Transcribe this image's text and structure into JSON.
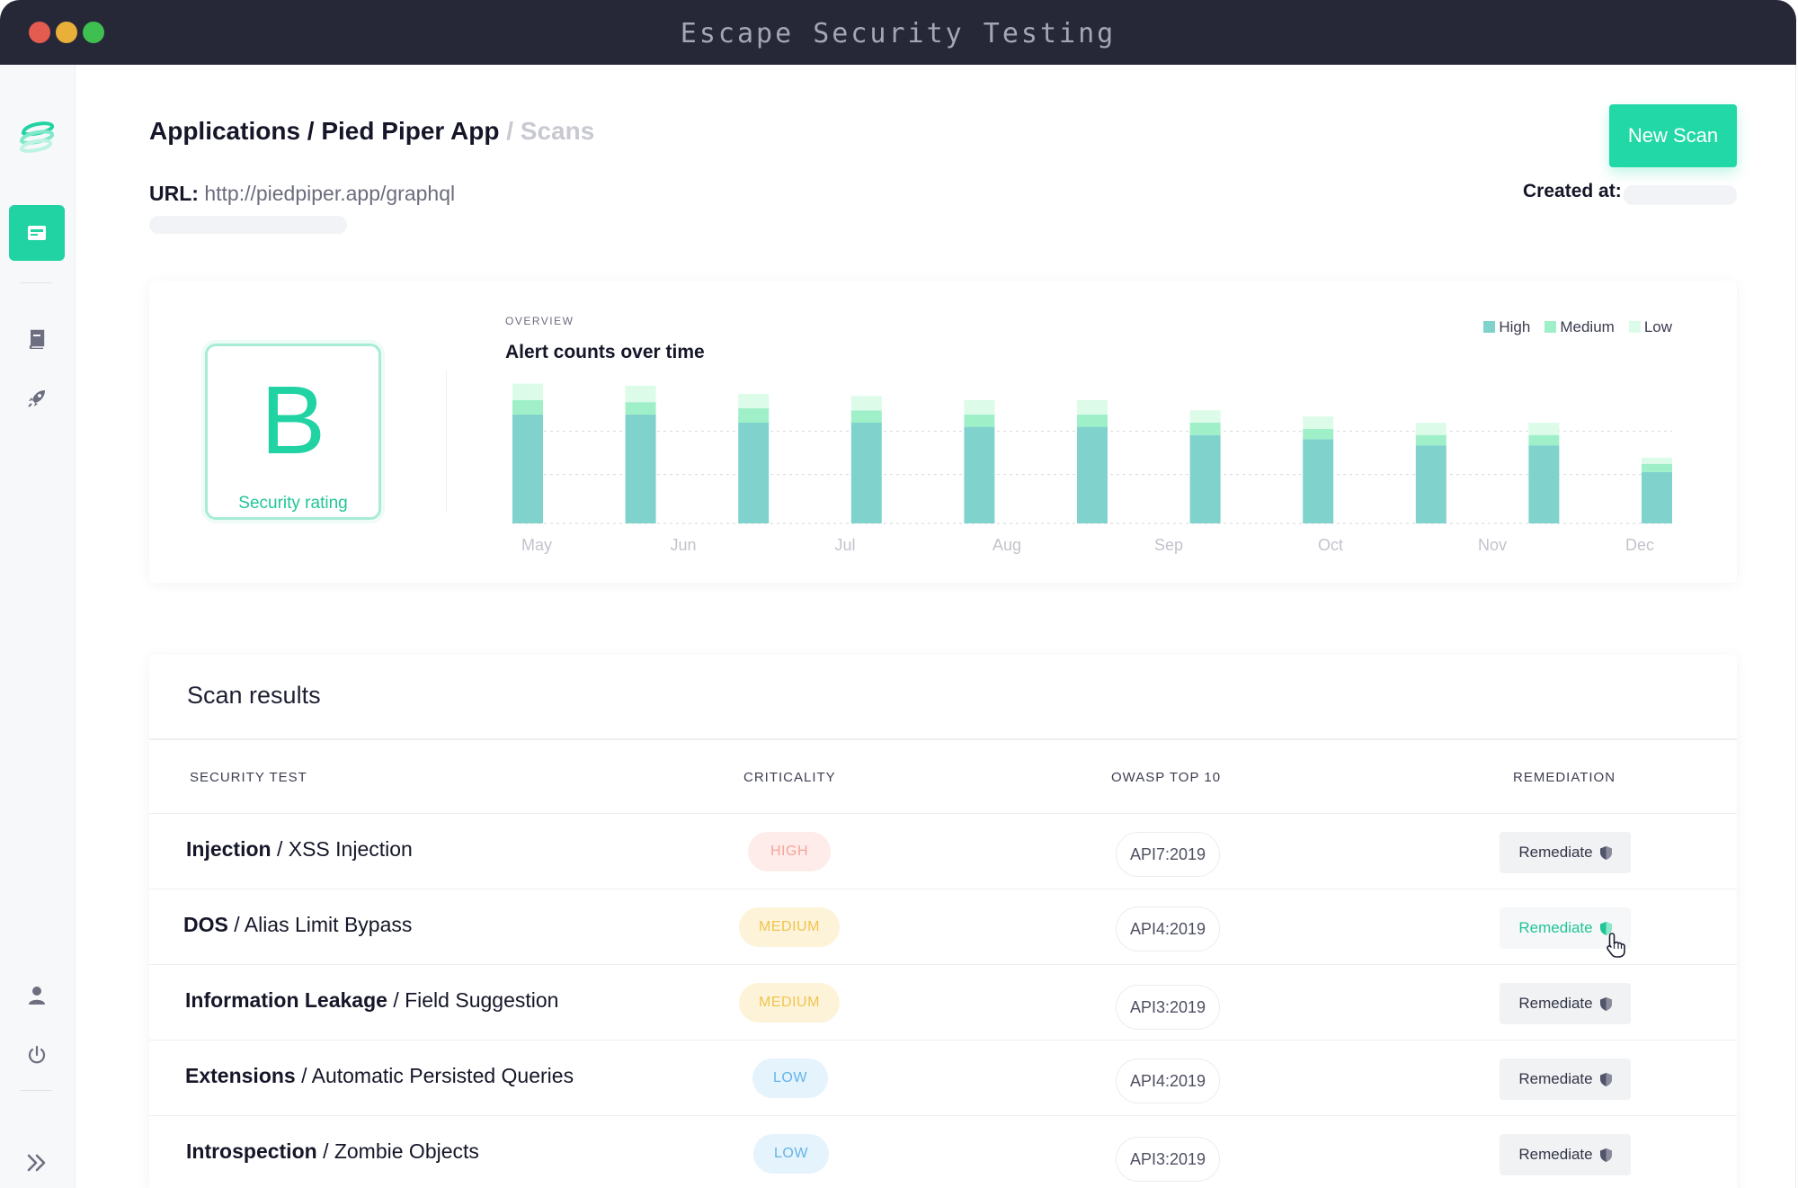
{
  "window": {
    "title": "Escape Security Testing"
  },
  "sidebar": {
    "items": [
      {
        "name": "logo-icon"
      },
      {
        "name": "dashboard-icon",
        "active": true
      },
      {
        "name": "book-icon"
      },
      {
        "name": "rocket-icon"
      },
      {
        "name": "user-icon"
      },
      {
        "name": "power-icon"
      },
      {
        "name": "double-chevron-right-icon"
      }
    ]
  },
  "header": {
    "breadcrumb_main": "Applications / Pied Piper App",
    "breadcrumb_sub": "/ Scans",
    "url_label": "URL:",
    "url_value": "http://piedpiper.app/graphql",
    "created_label": "Created at:",
    "new_scan_label": "New Scan"
  },
  "overview": {
    "rating_letter": "B",
    "rating_label": "Security rating",
    "section_label": "OVERVIEW",
    "chart_title": "Alert counts over time"
  },
  "chart_data": {
    "type": "bar",
    "stacked": true,
    "title": "Alert counts over time",
    "x_tick_labels": [
      "May",
      "Jun",
      "Jul",
      "Aug",
      "Sep",
      "Oct",
      "Nov",
      "Dec"
    ],
    "bars": 11,
    "series": [
      {
        "name": "High",
        "color": "#7fd3cc",
        "values": [
          106,
          106,
          98,
          98,
          94,
          94,
          86,
          82,
          76,
          76,
          50
        ]
      },
      {
        "name": "Medium",
        "color": "#9ff0c8",
        "values": [
          14,
          12,
          14,
          12,
          12,
          12,
          12,
          10,
          10,
          10,
          8
        ]
      },
      {
        "name": "Low",
        "color": "#ddfbe9",
        "values": [
          16,
          16,
          14,
          14,
          14,
          14,
          12,
          12,
          12,
          12,
          6
        ]
      }
    ],
    "ylim": [
      0,
      140
    ],
    "grid": true,
    "legend_position": "top-right"
  },
  "results": {
    "title": "Scan results",
    "columns": [
      "SECURITY TEST",
      "CRITICALITY",
      "OWASP TOP 10",
      "REMEDIATION"
    ],
    "rows": [
      {
        "category": "Injection",
        "test": "/ XSS Injection",
        "criticality": "HIGH",
        "level": "high",
        "owasp": "API7:2019",
        "remediation": "Remediate"
      },
      {
        "category": "DOS",
        "test": "/ Alias Limit Bypass",
        "criticality": "MEDIUM",
        "level": "medium",
        "owasp": "API4:2019",
        "remediation": "Remediate"
      },
      {
        "category": "Information Leakage",
        "test": "/ Field Suggestion",
        "criticality": "MEDIUM",
        "level": "medium",
        "owasp": "API3:2019",
        "remediation": "Remediate"
      },
      {
        "category": "Extensions",
        "test": "/ Automatic Persisted Queries",
        "criticality": "LOW",
        "level": "low",
        "owasp": "API4:2019",
        "remediation": "Remediate"
      },
      {
        "category": "Introspection",
        "test": "/ Zombie Objects",
        "criticality": "LOW",
        "level": "low",
        "owasp": "API3:2019",
        "remediation": "Remediate"
      }
    ]
  },
  "colors": {
    "accent": "#21d3a3",
    "titlebar": "#262838"
  }
}
